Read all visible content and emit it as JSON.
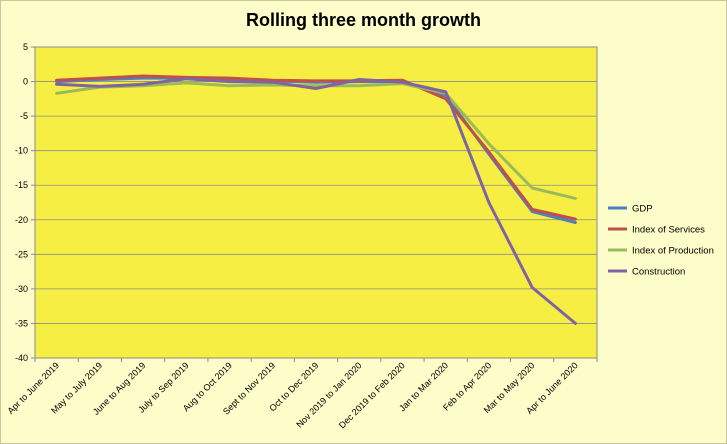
{
  "chart_data": {
    "type": "line",
    "title": "Rolling three month growth",
    "xlabel": "",
    "ylabel": "",
    "ylim": [
      -40,
      5
    ],
    "yticks": [
      5,
      0,
      -5,
      -10,
      -15,
      -20,
      -25,
      -30,
      -35,
      -40
    ],
    "grid": true,
    "legend_position": "right",
    "categories": [
      "Apr to June 2019",
      "May to July 2019",
      "June to Aug 2019",
      "July to Sep 2019",
      "Aug to Oct 2019",
      "Sept to Nov 2019",
      "Oct to Dec 2019",
      "Nov 2019 to Jan 2020",
      "Dec 2019 to Feb 2020",
      "Jan to Mar 2020",
      "Feb to Apr 2020",
      "Mar to May 2020",
      "Apr to June 2020"
    ],
    "series": [
      {
        "name": "GDP",
        "color": "#4f81bd",
        "values": [
          0.0,
          0.3,
          0.5,
          0.5,
          0.3,
          0.1,
          -0.1,
          0.0,
          0.0,
          -2.0,
          -10.5,
          -18.8,
          -20.4
        ]
      },
      {
        "name": "Index of Services",
        "color": "#c0504d",
        "values": [
          0.2,
          0.5,
          0.8,
          0.6,
          0.5,
          0.2,
          0.1,
          0.1,
          0.2,
          -2.5,
          -10.2,
          -18.5,
          -19.9
        ]
      },
      {
        "name": "Index of Production",
        "color": "#9bbb59",
        "values": [
          -1.7,
          -0.8,
          -0.6,
          -0.2,
          -0.6,
          -0.5,
          -0.6,
          -0.6,
          -0.3,
          -1.7,
          -9.0,
          -15.4,
          -16.9
        ]
      },
      {
        "name": "Construction",
        "color": "#8064a2",
        "values": [
          -0.4,
          -0.7,
          -0.4,
          0.4,
          0.0,
          -0.1,
          -1.0,
          0.3,
          -0.1,
          -1.5,
          -17.5,
          -29.8,
          -35.0
        ]
      }
    ]
  }
}
